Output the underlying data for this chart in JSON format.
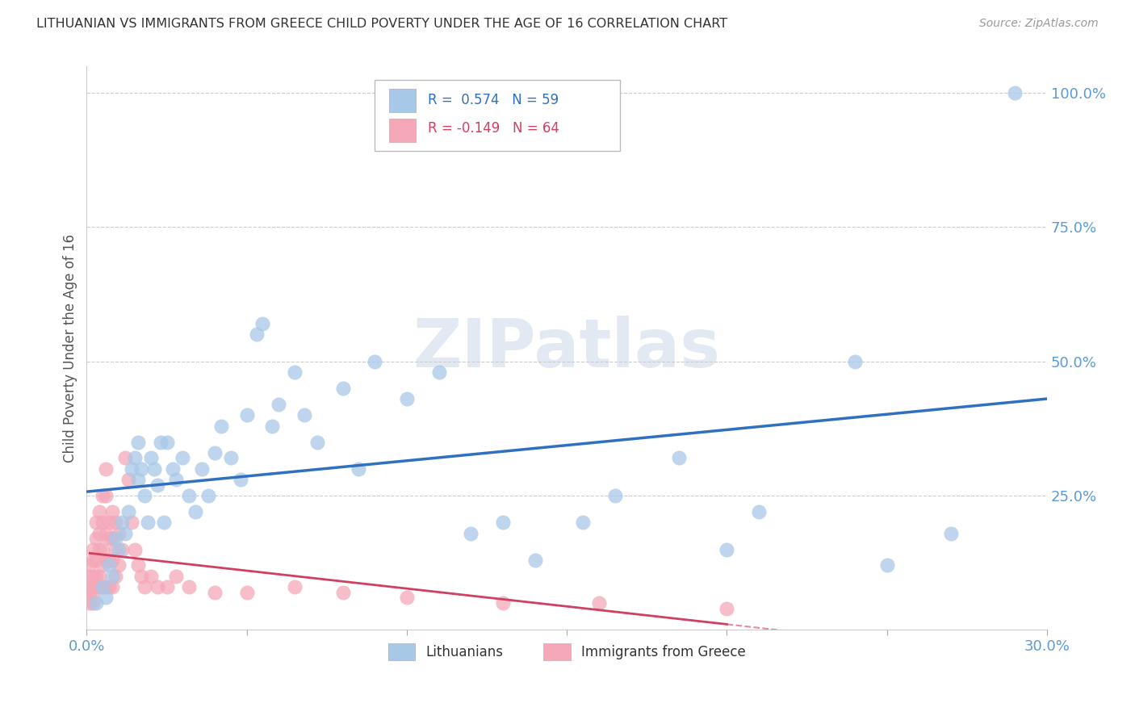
{
  "title": "LITHUANIAN VS IMMIGRANTS FROM GREECE CHILD POVERTY UNDER THE AGE OF 16 CORRELATION CHART",
  "source": "Source: ZipAtlas.com",
  "ylabel": "Child Poverty Under the Age of 16",
  "legend_label1": "Lithuanians",
  "legend_label2": "Immigrants from Greece",
  "blue_color": "#a8c8e8",
  "pink_color": "#f4a8b8",
  "blue_line_color": "#3070c0",
  "pink_line_color": "#d04060",
  "watermark_text": "ZIPatlas",
  "xlim": [
    0.0,
    0.3
  ],
  "ylim": [
    0.0,
    1.05
  ],
  "y_ticks": [
    0.0,
    0.25,
    0.5,
    0.75,
    1.0
  ],
  "y_tick_labels": [
    "",
    "25.0%",
    "50.0%",
    "75.0%",
    "100.0%"
  ],
  "x_ticks": [
    0.0,
    0.05,
    0.1,
    0.15,
    0.2,
    0.25,
    0.3
  ],
  "x_tick_labels": [
    "0.0%",
    "",
    "",
    "",
    "",
    "",
    "30.0%"
  ],
  "blue_R": 0.574,
  "blue_N": 59,
  "pink_R": -0.149,
  "pink_N": 64,
  "blue_x": [
    0.003,
    0.005,
    0.006,
    0.007,
    0.008,
    0.009,
    0.01,
    0.011,
    0.012,
    0.013,
    0.014,
    0.015,
    0.016,
    0.016,
    0.017,
    0.018,
    0.019,
    0.02,
    0.021,
    0.022,
    0.023,
    0.024,
    0.025,
    0.027,
    0.028,
    0.03,
    0.032,
    0.034,
    0.036,
    0.038,
    0.04,
    0.042,
    0.045,
    0.048,
    0.05,
    0.053,
    0.055,
    0.058,
    0.06,
    0.065,
    0.068,
    0.072,
    0.08,
    0.085,
    0.09,
    0.1,
    0.11,
    0.12,
    0.13,
    0.14,
    0.155,
    0.165,
    0.185,
    0.2,
    0.21,
    0.24,
    0.25,
    0.27,
    0.29
  ],
  "blue_y": [
    0.05,
    0.08,
    0.06,
    0.12,
    0.1,
    0.17,
    0.15,
    0.2,
    0.18,
    0.22,
    0.3,
    0.32,
    0.28,
    0.35,
    0.3,
    0.25,
    0.2,
    0.32,
    0.3,
    0.27,
    0.35,
    0.2,
    0.35,
    0.3,
    0.28,
    0.32,
    0.25,
    0.22,
    0.3,
    0.25,
    0.33,
    0.38,
    0.32,
    0.28,
    0.4,
    0.55,
    0.57,
    0.38,
    0.42,
    0.48,
    0.4,
    0.35,
    0.45,
    0.3,
    0.5,
    0.43,
    0.48,
    0.18,
    0.2,
    0.13,
    0.2,
    0.25,
    0.32,
    0.15,
    0.22,
    0.5,
    0.12,
    0.18,
    1.0
  ],
  "pink_x": [
    0.001,
    0.001,
    0.001,
    0.001,
    0.001,
    0.002,
    0.002,
    0.002,
    0.002,
    0.002,
    0.002,
    0.003,
    0.003,
    0.003,
    0.003,
    0.003,
    0.004,
    0.004,
    0.004,
    0.004,
    0.005,
    0.005,
    0.005,
    0.005,
    0.005,
    0.006,
    0.006,
    0.006,
    0.006,
    0.006,
    0.007,
    0.007,
    0.007,
    0.007,
    0.008,
    0.008,
    0.008,
    0.008,
    0.009,
    0.009,
    0.009,
    0.01,
    0.01,
    0.011,
    0.012,
    0.013,
    0.014,
    0.015,
    0.016,
    0.017,
    0.018,
    0.02,
    0.022,
    0.025,
    0.028,
    0.032,
    0.04,
    0.05,
    0.065,
    0.08,
    0.1,
    0.13,
    0.16,
    0.2
  ],
  "pink_y": [
    0.12,
    0.1,
    0.08,
    0.07,
    0.05,
    0.15,
    0.13,
    0.1,
    0.08,
    0.07,
    0.05,
    0.2,
    0.17,
    0.13,
    0.1,
    0.08,
    0.22,
    0.18,
    0.15,
    0.1,
    0.25,
    0.2,
    0.15,
    0.12,
    0.08,
    0.3,
    0.25,
    0.18,
    0.13,
    0.08,
    0.2,
    0.17,
    0.13,
    0.08,
    0.22,
    0.17,
    0.13,
    0.08,
    0.2,
    0.15,
    0.1,
    0.18,
    0.12,
    0.15,
    0.32,
    0.28,
    0.2,
    0.15,
    0.12,
    0.1,
    0.08,
    0.1,
    0.08,
    0.08,
    0.1,
    0.08,
    0.07,
    0.07,
    0.08,
    0.07,
    0.06,
    0.05,
    0.05,
    0.04
  ]
}
